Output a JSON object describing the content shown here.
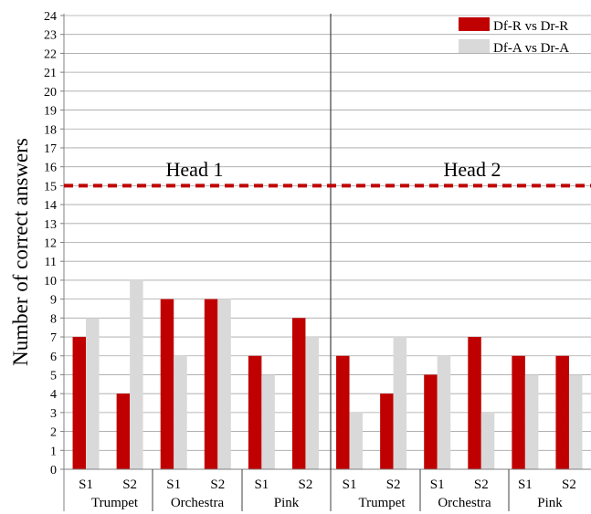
{
  "chart_data": {
    "type": "bar",
    "ylabel": "Number of correct answers",
    "ylim": [
      0,
      24
    ],
    "yticks": [
      0,
      1,
      2,
      3,
      4,
      5,
      6,
      7,
      8,
      9,
      10,
      11,
      12,
      13,
      14,
      15,
      16,
      17,
      18,
      19,
      20,
      21,
      22,
      23,
      24
    ],
    "grid": true,
    "legend_position": "top-right",
    "reference_line": {
      "value": 15,
      "style": "dashed",
      "color": "#c00000"
    },
    "panels": [
      {
        "label": "Head 1"
      },
      {
        "label": "Head 2"
      }
    ],
    "groups": [
      {
        "label": "Trumpet",
        "panel": 0
      },
      {
        "label": "Orchestra",
        "panel": 0
      },
      {
        "label": "Pink",
        "panel": 0
      },
      {
        "label": "Trumpet",
        "panel": 1
      },
      {
        "label": "Orchestra",
        "panel": 1
      },
      {
        "label": "Pink",
        "panel": 1
      }
    ],
    "categories": [
      "S1",
      "S2",
      "S1",
      "S2",
      "S1",
      "S2",
      "S1",
      "S2",
      "S1",
      "S2",
      "S1",
      "S2"
    ],
    "series": [
      {
        "name": "Df-R vs Dr-R",
        "color": "#c00000",
        "values": [
          7,
          4,
          9,
          9,
          6,
          8,
          6,
          4,
          5,
          7,
          6,
          6
        ]
      },
      {
        "name": "Df-A vs Dr-A",
        "color": "#d9d9d9",
        "values": [
          8,
          10,
          6,
          9,
          5,
          7,
          3,
          7,
          6,
          3,
          5,
          5
        ]
      }
    ]
  }
}
